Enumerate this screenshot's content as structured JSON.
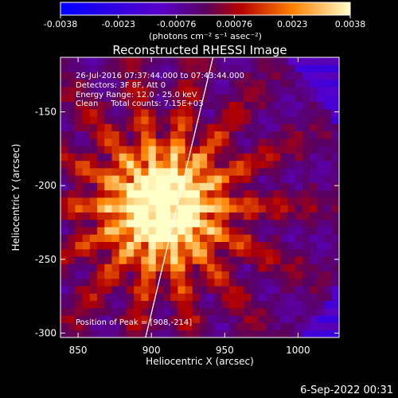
{
  "chart_data": {
    "type": "heatmap",
    "title": "Reconstructed RHESSI Image",
    "xlabel": "Heliocentric X (arcsec)",
    "ylabel": "Heliocentric Y (arcsec)",
    "xlim": [
      838,
      1028
    ],
    "ylim": [
      -303,
      -113
    ],
    "xticks": [
      850,
      900,
      950,
      1000
    ],
    "yticks": [
      -150,
      -200,
      -250,
      -300
    ],
    "colorbar": {
      "min": -0.0038,
      "max": 0.0038,
      "ticks": [
        "-0.0038",
        "-0.0023",
        "-0.00076",
        "0.00076",
        "0.0023",
        "0.0038"
      ],
      "units": "(photons cm⁻² s⁻¹ asec⁻²)"
    },
    "peak": {
      "x": 908,
      "y": -214
    },
    "annotations": [
      "26-Jul-2016 07:37:44.000 to 07:43:44.000",
      "Detectors: 3F 8F, Att 0",
      "Energy Range: 12.0 - 25.0 keV",
      "Clean     Total counts: 7.15E+03"
    ],
    "peak_label": "Position of Peak = [908,-214]",
    "limb": {
      "from": [
        942,
        -113
      ],
      "to": [
        896,
        -303
      ]
    }
  },
  "footer": {
    "date": "6-Sep-2022 00:31"
  }
}
